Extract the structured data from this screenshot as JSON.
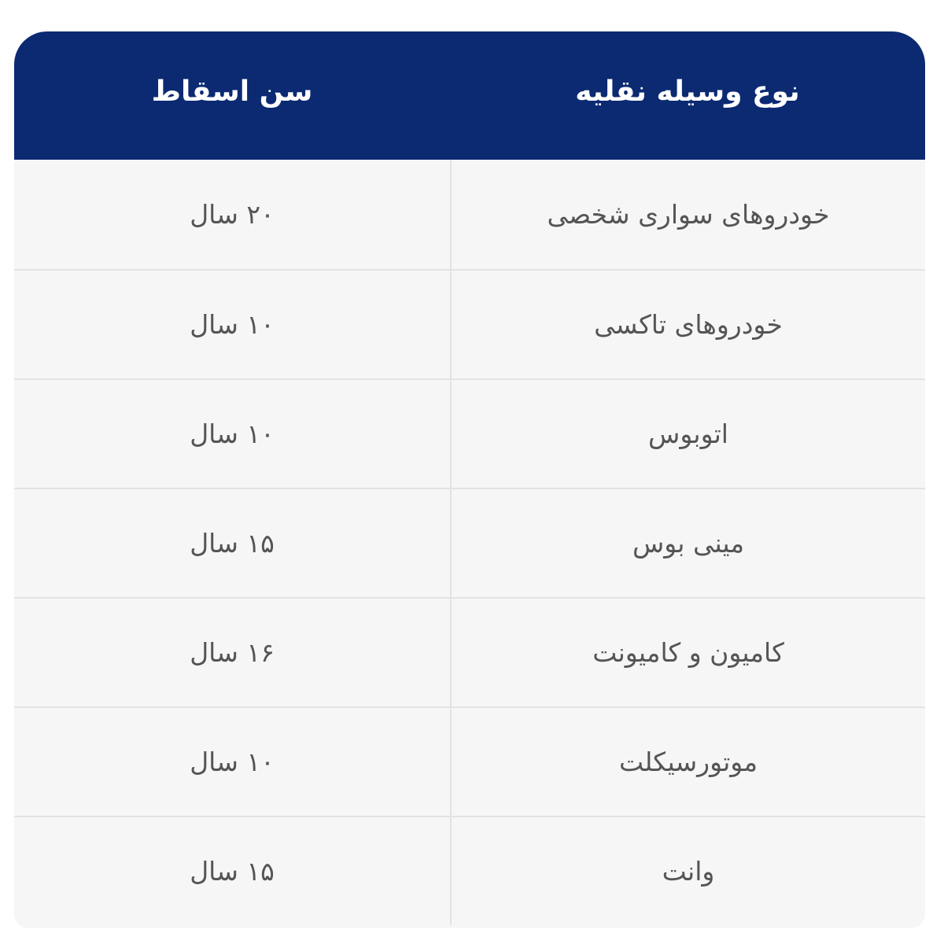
{
  "colors": {
    "header_bg": "#0b2a72",
    "header_text": "#ffffff",
    "row_bg": "#f6f6f6",
    "cell_text": "#555555"
  },
  "table": {
    "headers": [
      "نوع وسیله نقلیه",
      "سن اسقاط"
    ],
    "rows": [
      {
        "vehicle": "خودروهای سواری شخصی",
        "age": "۲۰ سال"
      },
      {
        "vehicle": "خودروهای تاکسی",
        "age": "۱۰ سال"
      },
      {
        "vehicle": "اتوبوس",
        "age": "۱۰ سال"
      },
      {
        "vehicle": "مینی بوس",
        "age": "۱۵ سال"
      },
      {
        "vehicle": "کامیون و کامیونت",
        "age": "۱۶ سال"
      },
      {
        "vehicle": "موتورسیکلت",
        "age": "۱۰ سال"
      },
      {
        "vehicle": "وانت",
        "age": "۱۵ سال"
      }
    ]
  }
}
